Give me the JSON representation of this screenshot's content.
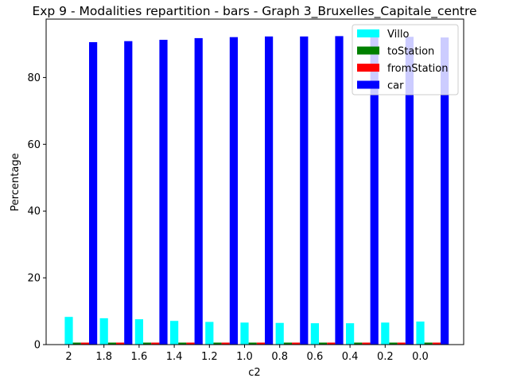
{
  "chart_data": {
    "type": "bar",
    "title": "Exp 9 - Modalities repartition - bars - Graph 3_Bruxelles_Capitale_centre",
    "xlabel": "c2",
    "ylabel": "Percentage",
    "categories": [
      "2",
      "1.8",
      "1.6",
      "1.4",
      "1.2",
      "1.0",
      "0.8",
      "0.6",
      "0.4",
      "0.2",
      "0.0"
    ],
    "yticks": [
      "0",
      "20",
      "40",
      "60",
      "80"
    ],
    "ylim": [
      0,
      97.5
    ],
    "legend_position": "top-right",
    "grid": false,
    "series": [
      {
        "name": "Villo",
        "color": "#00ffff",
        "values": [
          8.3,
          7.9,
          7.6,
          7.1,
          6.8,
          6.6,
          6.5,
          6.4,
          6.4,
          6.6,
          6.9
        ]
      },
      {
        "name": "toStation",
        "color": "#008000",
        "values": [
          0.6,
          0.6,
          0.6,
          0.6,
          0.6,
          0.6,
          0.6,
          0.6,
          0.6,
          0.6,
          0.6
        ]
      },
      {
        "name": "fromStation",
        "color": "#ff0000",
        "values": [
          0.6,
          0.6,
          0.6,
          0.6,
          0.6,
          0.6,
          0.6,
          0.6,
          0.6,
          0.6,
          0.6
        ]
      },
      {
        "name": "car",
        "color": "#0000ff",
        "values": [
          90.6,
          90.9,
          91.3,
          91.8,
          92.1,
          92.3,
          92.3,
          92.4,
          92.5,
          92.2,
          92.0
        ]
      }
    ]
  }
}
